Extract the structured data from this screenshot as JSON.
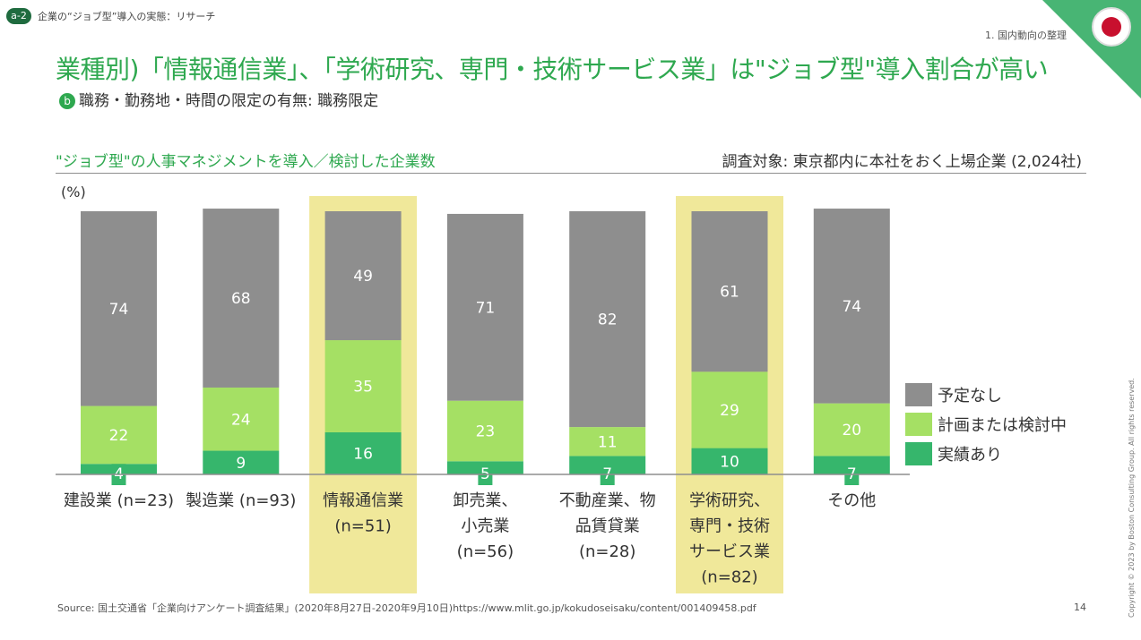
{
  "header": {
    "badge": "a-2",
    "breadcrumb": "企業の“ジョブ型”導入の実態：リサーチ",
    "section": "1. 国内動向の整理"
  },
  "title": "業種別)「情報通信業」、「学術研究、専門・技術サービス業」は\"ジョブ型\"導入割合が高い",
  "subtitle": {
    "icon": "b",
    "text": "職務・勤務地・時間の限定の有無: 職務限定"
  },
  "chart_header": "\"ジョブ型\"の人事マネジメントを導入／検討した企業数",
  "survey_target": "調査対象: 東京都内に本社をおく上場企業 (2,024社)",
  "source": "Source: 国土交通省「企業向けアンケート調査結果」(2020年8月27日-2020年9月10日)https://www.mlit.go.jp/kokudoseisaku/content/001409458.pdf",
  "page_number": "14",
  "copyright": "Copyright © 2023 by Boston Consulting Group. All rights reserved.",
  "colors": {
    "none": "#8e8e8e",
    "plan": "#a5e064",
    "done": "#36b66c",
    "highlight": "#f0e89a",
    "accent": "#2ea84f"
  },
  "chart_data": {
    "type": "bar",
    "stacked": true,
    "ylabel": "(%)",
    "ylim": [
      0,
      100
    ],
    "categories": [
      [
        "建設業 (n=23)"
      ],
      [
        "製造業 (n=93)"
      ],
      [
        "情報通信業",
        "(n=51)"
      ],
      [
        "卸売業、",
        "小売業",
        "(n=56)"
      ],
      [
        "不動産業、物",
        "品賃貸業",
        "(n=28)"
      ],
      [
        "学術研究、",
        "専門・技術",
        "サービス業",
        "(n=82)"
      ],
      [
        "その他"
      ]
    ],
    "highlighted": [
      2,
      5
    ],
    "series": [
      {
        "name": "実績あり",
        "color_key": "done",
        "values": [
          4,
          9,
          16,
          5,
          7,
          10,
          7
        ]
      },
      {
        "name": "計画または検討中",
        "color_key": "plan",
        "values": [
          22,
          24,
          35,
          23,
          11,
          29,
          20
        ]
      },
      {
        "name": "予定なし",
        "color_key": "none",
        "values": [
          74,
          68,
          49,
          71,
          82,
          61,
          74
        ]
      }
    ],
    "legend_order": [
      "予定なし",
      "計画または検討中",
      "実績あり"
    ],
    "legend_position": "right"
  }
}
